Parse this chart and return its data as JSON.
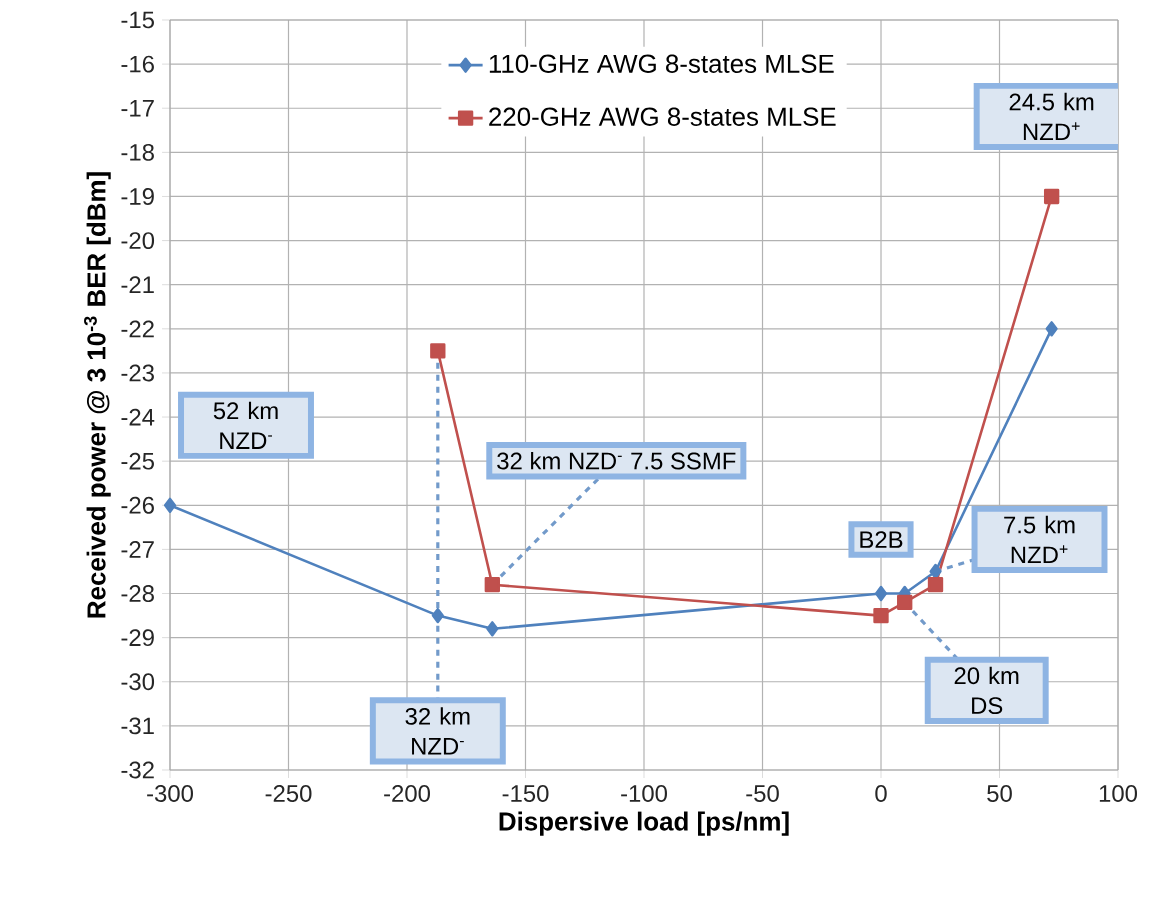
{
  "chart_data": {
    "type": "line",
    "xlabel": "Dispersive load [ps/nm]",
    "ylabel": "Received power @ 3 10$^{-3}$ BER [dBm]",
    "xlim": [
      -300,
      100
    ],
    "xticks": [
      -300,
      -250,
      -200,
      -150,
      -100,
      -50,
      0,
      50,
      100
    ],
    "ylim": [
      -32,
      -15
    ],
    "yticks": [
      -32,
      -31,
      -30,
      -29,
      -28,
      -27,
      -26,
      -25,
      -24,
      -23,
      -22,
      -21,
      -20,
      -19,
      -18,
      -17,
      -16,
      -15
    ],
    "grid": true,
    "legend": "top",
    "line_style": "solid",
    "series": [
      {
        "name": "110-GHz AWG 8-states MLSE",
        "color": "#4f81bd",
        "marker": "diamond",
        "x": [
          -300,
          -187,
          -164,
          0,
          10,
          23,
          72
        ],
        "values": [
          -26,
          -28.5,
          -28.8,
          -28.0,
          -28.0,
          -27.5,
          -22
        ]
      },
      {
        "name": "220-GHz AWG 8-states MLSE",
        "color": "#c0504d",
        "marker": "square",
        "x": [
          -187,
          -164,
          0,
          10,
          23,
          72
        ],
        "values": [
          -22.5,
          -27.8,
          -28.5,
          -28.2,
          -27.8,
          -19
        ]
      }
    ],
    "annotations": [
      {
        "text": "52 km NZD$^{-}$",
        "x": -300,
        "y": -26
      },
      {
        "text": "32 km NZD$^{-}$ 7.5 SSMF",
        "x": -164,
        "y": -27.8
      },
      {
        "text": "32 km NZD$^{-}$",
        "x": -187,
        "y": -22.5
      },
      {
        "text": "B2B",
        "x": 0,
        "y": -28.0
      },
      {
        "text": "20 km DS",
        "x": 10,
        "y": -28.2
      },
      {
        "text": "7.5 km NZD$^{+}$",
        "x": 23,
        "y": -27.5
      },
      {
        "text": "24.5 km NZD$^{+}$",
        "x": 72,
        "y": -19
      }
    ]
  }
}
